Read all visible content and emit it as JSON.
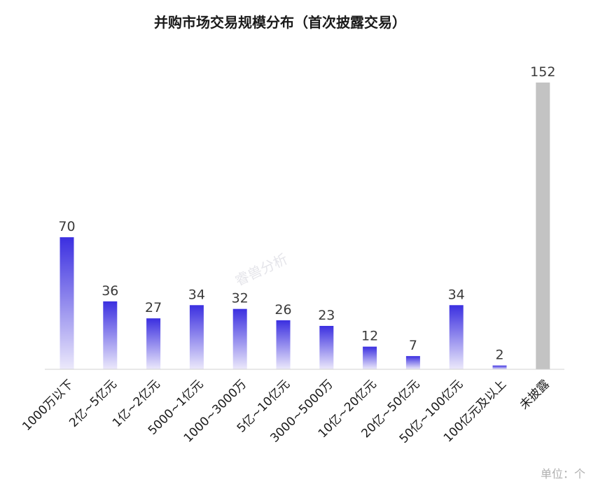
{
  "chart_data": {
    "type": "bar",
    "title": "并购市场交易规模分布（首次披露交易）",
    "categories": [
      "1000万以下",
      "2亿~5亿元",
      "1亿~2亿元",
      "5000~1亿元",
      "1000~3000万",
      "5亿~10亿元",
      "3000~5000万",
      "10亿~20亿元",
      "20亿~50亿元",
      "50亿~100亿元",
      "100亿元及以上",
      "未披露"
    ],
    "values": [
      70,
      36,
      27,
      34,
      32,
      26,
      23,
      12,
      7,
      34,
      2,
      152
    ],
    "unit_note": "单位：个",
    "watermark": "睿兽分析",
    "colors": {
      "bar_top": "#3b2fe0",
      "bar_bottom": "#ece9fb",
      "undisclosed": "#c3c3c3",
      "axis": "#d0d0d0"
    },
    "ylim": [
      0,
      152
    ]
  }
}
